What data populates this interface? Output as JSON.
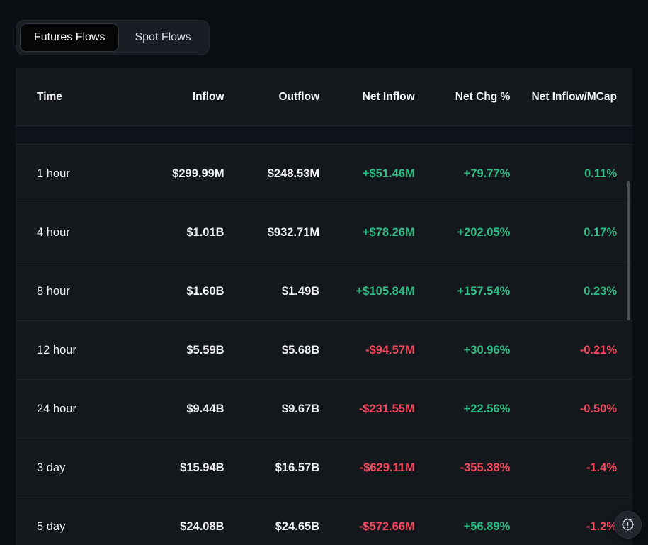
{
  "tabs": {
    "items": [
      {
        "label": "Futures Flows",
        "active": true
      },
      {
        "label": "Spot Flows",
        "active": false
      }
    ]
  },
  "table": {
    "columns": [
      "Time",
      "Inflow",
      "Outflow",
      "Net Inflow",
      "Net Chg %",
      "Net Inflow/MCap"
    ],
    "rows": [
      {
        "time": "1 hour",
        "inflow": "$299.99M",
        "outflow": "$248.53M",
        "net_inflow": "+$51.46M",
        "net_inflow_color": "green",
        "net_chg_pct": "+79.77%",
        "net_chg_color": "green",
        "net_inflow_mcap": "0.11%",
        "mcap_color": "green"
      },
      {
        "time": "4 hour",
        "inflow": "$1.01B",
        "outflow": "$932.71M",
        "net_inflow": "+$78.26M",
        "net_inflow_color": "green",
        "net_chg_pct": "+202.05%",
        "net_chg_color": "green",
        "net_inflow_mcap": "0.17%",
        "mcap_color": "green"
      },
      {
        "time": "8 hour",
        "inflow": "$1.60B",
        "outflow": "$1.49B",
        "net_inflow": "+$105.84M",
        "net_inflow_color": "green",
        "net_chg_pct": "+157.54%",
        "net_chg_color": "green",
        "net_inflow_mcap": "0.23%",
        "mcap_color": "green"
      },
      {
        "time": "12 hour",
        "inflow": "$5.59B",
        "outflow": "$5.68B",
        "net_inflow": "-$94.57M",
        "net_inflow_color": "red",
        "net_chg_pct": "+30.96%",
        "net_chg_color": "green",
        "net_inflow_mcap": "-0.21%",
        "mcap_color": "red"
      },
      {
        "time": "24 hour",
        "inflow": "$9.44B",
        "outflow": "$9.67B",
        "net_inflow": "-$231.55M",
        "net_inflow_color": "red",
        "net_chg_pct": "+22.56%",
        "net_chg_color": "green",
        "net_inflow_mcap": "-0.50%",
        "mcap_color": "red"
      },
      {
        "time": "3 day",
        "inflow": "$15.94B",
        "outflow": "$16.57B",
        "net_inflow": "-$629.11M",
        "net_inflow_color": "red",
        "net_chg_pct": "-355.38%",
        "net_chg_color": "red",
        "net_inflow_mcap": "-1.4%",
        "mcap_color": "red"
      },
      {
        "time": "5 day",
        "inflow": "$24.08B",
        "outflow": "$24.65B",
        "net_inflow": "-$572.66M",
        "net_inflow_color": "red",
        "net_chg_pct": "+56.89%",
        "net_chg_color": "green",
        "net_inflow_mcap": "-1.2%",
        "mcap_color": "red"
      }
    ]
  },
  "colors": {
    "green": "#2ebd85",
    "red": "#f5465c"
  },
  "icons": {
    "fab": "badge-alert-icon"
  }
}
